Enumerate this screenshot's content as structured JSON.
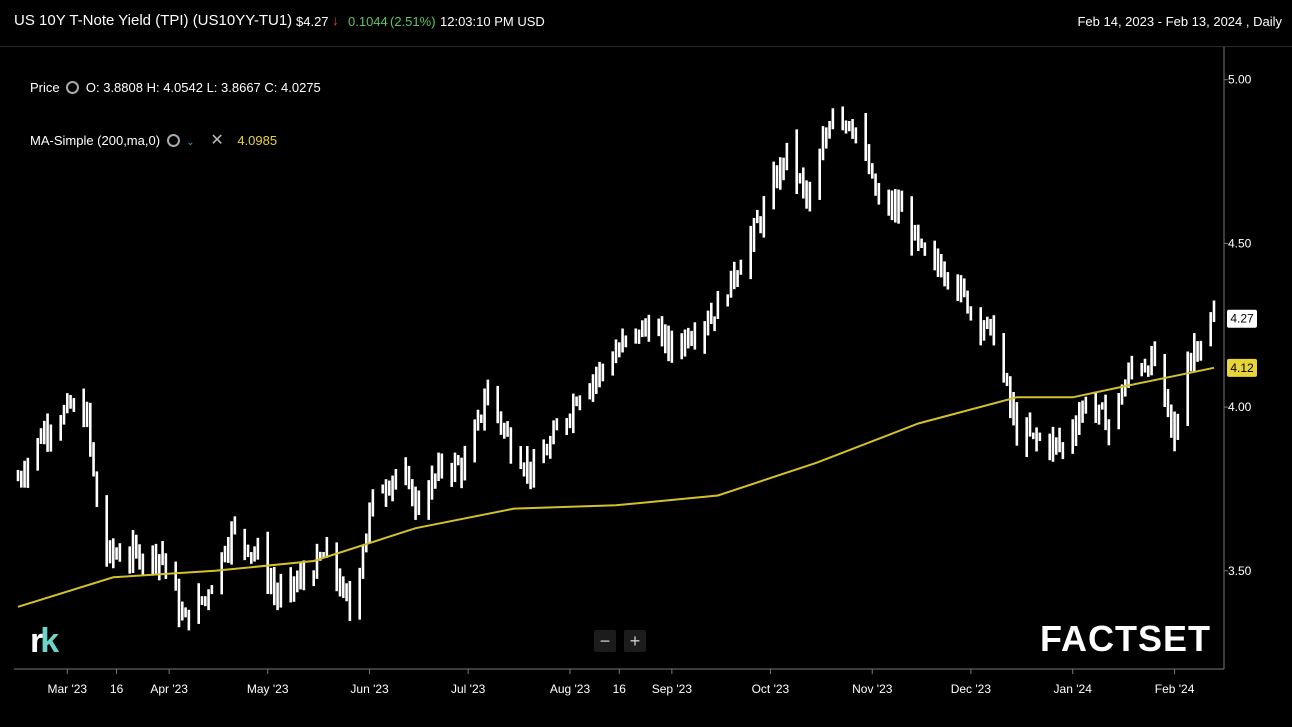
{
  "header": {
    "title": "US 10Y T-Note Yield (TPI)  (US10YY-TU1)",
    "last_price": "$4.27",
    "change": "0.1044",
    "change_pct": "(2.51%)",
    "time": "12:03:10 PM USD",
    "date_range": "Feb 14, 2023 - Feb 13, 2024 , Daily"
  },
  "legend": {
    "price_label": "Price",
    "ohlc": "O: 3.8808  H: 4.0542  L: 3.8667  C: 4.0275",
    "ma_label": "MA-Simple (200,ma,0)",
    "ma_value": "4.0985"
  },
  "colors": {
    "price_bars": "#ffffff",
    "ma_line": "#d4c12a",
    "down": "#e23b3b",
    "up": "#5ec45e"
  },
  "zoom": {
    "minus": "−",
    "plus": "+"
  },
  "logos": {
    "left_r": "r",
    "left_k": "k",
    "right": "FACTSET"
  },
  "chart_data": {
    "type": "ohlc",
    "interval": "Daily",
    "y_ticks": [
      3.5,
      4.0,
      4.5,
      5.0
    ],
    "y_tick_labels": [
      "3.50",
      "4.00",
      "4.50",
      "5.00"
    ],
    "ylim": [
      3.2,
      5.1
    ],
    "x_tick_labels": [
      {
        "label": "Mar '23",
        "date": "2023-03-01"
      },
      {
        "label": "16",
        "date": "2023-03-16"
      },
      {
        "label": "Apr '23",
        "date": "2023-04-01"
      },
      {
        "label": "May '23",
        "date": "2023-05-01"
      },
      {
        "label": "Jun '23",
        "date": "2023-06-01"
      },
      {
        "label": "Jul '23",
        "date": "2023-07-01"
      },
      {
        "label": "Aug '23",
        "date": "2023-08-01"
      },
      {
        "label": "16",
        "date": "2023-08-16"
      },
      {
        "label": "Sep '23",
        "date": "2023-09-01"
      },
      {
        "label": "Oct '23",
        "date": "2023-10-01"
      },
      {
        "label": "Nov '23",
        "date": "2023-11-01"
      },
      {
        "label": "Dec '23",
        "date": "2023-12-01"
      },
      {
        "label": "Jan '24",
        "date": "2024-01-01"
      },
      {
        "label": "Feb '24",
        "date": "2024-02-01"
      }
    ],
    "last_price_label": "4.27",
    "ma_last_label": "4.12",
    "price_series": {
      "name": "Price",
      "close_path": [
        {
          "date": "2023-02-14",
          "value": 3.78
        },
        {
          "date": "2023-02-22",
          "value": 3.93
        },
        {
          "date": "2023-03-02",
          "value": 4.0
        },
        {
          "date": "2023-03-07",
          "value": 3.97
        },
        {
          "date": "2023-03-10",
          "value": 3.7
        },
        {
          "date": "2023-03-13",
          "value": 3.55
        },
        {
          "date": "2023-03-22",
          "value": 3.55
        },
        {
          "date": "2023-03-30",
          "value": 3.55
        },
        {
          "date": "2023-04-05",
          "value": 3.35
        },
        {
          "date": "2023-04-12",
          "value": 3.42
        },
        {
          "date": "2023-04-20",
          "value": 3.62
        },
        {
          "date": "2023-04-28",
          "value": 3.55
        },
        {
          "date": "2023-05-04",
          "value": 3.42
        },
        {
          "date": "2023-05-12",
          "value": 3.48
        },
        {
          "date": "2023-05-19",
          "value": 3.55
        },
        {
          "date": "2023-05-26",
          "value": 3.38
        },
        {
          "date": "2023-06-02",
          "value": 3.72
        },
        {
          "date": "2023-06-09",
          "value": 3.8
        },
        {
          "date": "2023-06-16",
          "value": 3.7
        },
        {
          "date": "2023-06-23",
          "value": 3.82
        },
        {
          "date": "2023-06-30",
          "value": 3.82
        },
        {
          "date": "2023-07-07",
          "value": 4.05
        },
        {
          "date": "2023-07-14",
          "value": 3.88
        },
        {
          "date": "2023-07-21",
          "value": 3.8
        },
        {
          "date": "2023-07-28",
          "value": 3.92
        },
        {
          "date": "2023-08-04",
          "value": 4.05
        },
        {
          "date": "2023-08-11",
          "value": 4.12
        },
        {
          "date": "2023-08-18",
          "value": 4.2
        },
        {
          "date": "2023-08-25",
          "value": 4.25
        },
        {
          "date": "2023-09-01",
          "value": 4.18
        },
        {
          "date": "2023-09-08",
          "value": 4.24
        },
        {
          "date": "2023-09-15",
          "value": 4.3
        },
        {
          "date": "2023-09-22",
          "value": 4.45
        },
        {
          "date": "2023-09-29",
          "value": 4.6
        },
        {
          "date": "2023-10-06",
          "value": 4.78
        },
        {
          "date": "2023-10-13",
          "value": 4.62
        },
        {
          "date": "2023-10-20",
          "value": 4.92
        },
        {
          "date": "2023-10-27",
          "value": 4.85
        },
        {
          "date": "2023-11-03",
          "value": 4.62
        },
        {
          "date": "2023-11-10",
          "value": 4.6
        },
        {
          "date": "2023-11-17",
          "value": 4.45
        },
        {
          "date": "2023-11-24",
          "value": 4.42
        },
        {
          "date": "2023-12-01",
          "value": 4.3
        },
        {
          "date": "2023-12-08",
          "value": 4.22
        },
        {
          "date": "2023-12-15",
          "value": 3.92
        },
        {
          "date": "2023-12-22",
          "value": 3.9
        },
        {
          "date": "2023-12-29",
          "value": 3.88
        },
        {
          "date": "2024-01-05",
          "value": 4.02
        },
        {
          "date": "2024-01-12",
          "value": 3.95
        },
        {
          "date": "2024-01-19",
          "value": 4.12
        },
        {
          "date": "2024-01-26",
          "value": 4.14
        },
        {
          "date": "2024-02-01",
          "value": 3.9
        },
        {
          "date": "2024-02-05",
          "value": 4.15
        },
        {
          "date": "2024-02-13",
          "value": 4.27
        }
      ]
    },
    "ma_series": {
      "name": "MA-Simple (200,ma,0)",
      "points": [
        {
          "date": "2023-02-14",
          "value": 3.39
        },
        {
          "date": "2023-03-15",
          "value": 3.48
        },
        {
          "date": "2023-04-15",
          "value": 3.5
        },
        {
          "date": "2023-05-15",
          "value": 3.53
        },
        {
          "date": "2023-06-15",
          "value": 3.63
        },
        {
          "date": "2023-07-15",
          "value": 3.69
        },
        {
          "date": "2023-08-15",
          "value": 3.7
        },
        {
          "date": "2023-09-15",
          "value": 3.73
        },
        {
          "date": "2023-10-15",
          "value": 3.83
        },
        {
          "date": "2023-11-15",
          "value": 3.95
        },
        {
          "date": "2023-12-15",
          "value": 4.03
        },
        {
          "date": "2024-01-01",
          "value": 4.03
        },
        {
          "date": "2024-01-15",
          "value": 4.06
        },
        {
          "date": "2024-02-13",
          "value": 4.12
        }
      ]
    }
  }
}
